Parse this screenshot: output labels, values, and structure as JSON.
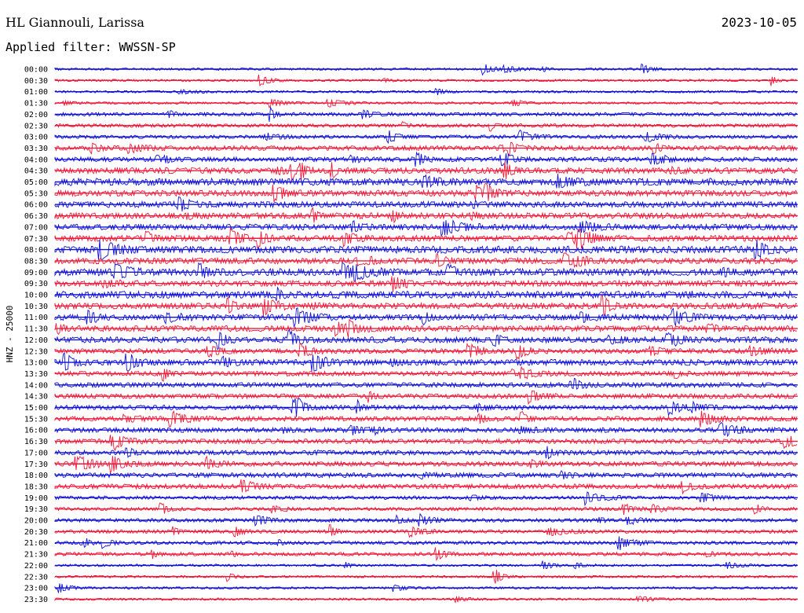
{
  "header": {
    "station": "HL Giannouli, Larissa",
    "date": "2023-10-05",
    "filter": "Applied filter: WWSSN-SP"
  },
  "chart_data": {
    "type": "line",
    "title": "HL Giannouli, Larissa",
    "ylabel": "HNZ - 25000",
    "row_labels": [
      "00:00",
      "00:30",
      "01:00",
      "01:30",
      "02:00",
      "02:30",
      "03:00",
      "03:30",
      "04:00",
      "04:30",
      "05:00",
      "05:30",
      "06:00",
      "06:30",
      "07:00",
      "07:30",
      "08:00",
      "08:30",
      "09:00",
      "09:30",
      "10:00",
      "10:30",
      "11:00",
      "11:30",
      "12:00",
      "12:30",
      "13:00",
      "13:30",
      "14:00",
      "14:30",
      "15:00",
      "15:30",
      "16:00",
      "16:30",
      "17:00",
      "17:30",
      "18:00",
      "18:30",
      "19:00",
      "19:30",
      "20:00",
      "20:30",
      "21:00",
      "21:30",
      "22:00",
      "22:30",
      "23:00",
      "23:30"
    ],
    "series_colors": [
      "#1010d8",
      "#f01838"
    ],
    "noise_level": [
      1,
      1,
      1,
      1,
      2,
      2,
      2,
      3,
      3,
      4,
      5,
      4,
      4,
      4,
      4,
      4,
      5,
      4,
      5,
      4,
      5,
      4,
      4,
      4,
      4,
      3,
      4,
      3,
      3,
      3,
      3,
      3,
      3,
      3,
      3,
      3,
      3,
      3,
      2,
      2,
      2,
      2,
      2,
      2,
      1,
      1,
      1,
      1
    ],
    "grid": false
  }
}
